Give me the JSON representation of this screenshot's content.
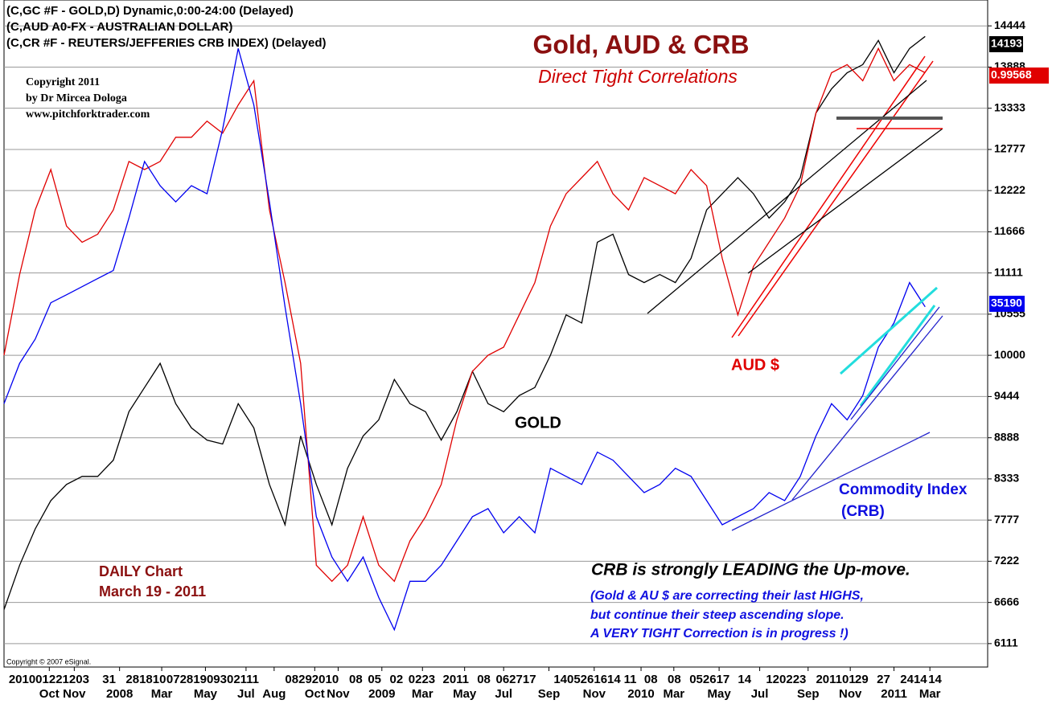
{
  "chart_data": {
    "type": "line",
    "title": "Gold, AUD & CRB",
    "subtitle": "Direct Tight Correlations",
    "header": [
      "(C,GC #F - GOLD,D) Dynamic,0:00-24:00 (Delayed)",
      "(C,AUD A0-FX - AUSTRALIAN DOLLAR)",
      "(C,CR #F - REUTERS/JEFFERIES CRB INDEX)  (Delayed)"
    ],
    "copyright": [
      "Copyright 2011",
      "by Dr Mircea Dologa",
      "www.pitchforktrader.com"
    ],
    "source": "Copyright © 2007 eSignal.",
    "annotations": [
      {
        "text": "DAILY Chart",
        "color": "#8b1010"
      },
      {
        "text": "March 19 - 2011",
        "color": "#8b1010"
      },
      {
        "text": "GOLD",
        "color": "#000000"
      },
      {
        "text": "AUD $",
        "color": "#e00000"
      },
      {
        "text": "Commodity Index",
        "color": "#1010e0"
      },
      {
        "text": "(CRB)",
        "color": "#1010e0"
      },
      {
        "text": "CRB is strongly  LEADING the Up-move.",
        "color": "#000000"
      },
      {
        "text": "(Gold & AU $ are correcting their last HIGHS,",
        "color": "#1010e0"
      },
      {
        "text": "but continue their steep ascending slope.",
        "color": "#1010e0"
      },
      {
        "text": "A VERY TIGHT Correction is in progress !)",
        "color": "#1010e0"
      }
    ],
    "x": [
      0,
      1,
      2,
      3,
      4,
      5,
      6,
      7,
      8,
      9,
      10,
      11,
      12,
      13,
      14,
      15,
      16,
      17,
      18,
      19,
      20,
      21,
      22,
      23,
      24,
      25,
      26,
      27,
      28,
      29,
      30,
      31,
      32,
      33,
      34,
      35,
      36,
      37,
      38,
      39,
      40,
      41,
      42,
      43,
      44,
      45,
      46,
      47,
      48,
      49,
      50,
      51,
      52,
      53,
      54,
      55,
      56,
      57,
      58,
      59
    ],
    "xlim": [
      0,
      63
    ],
    "xticks": [
      {
        "value": 2.9,
        "label": "Oct"
      },
      {
        "value": 4.5,
        "label": "Nov"
      },
      {
        "value": 7.4,
        "label": "2008"
      },
      {
        "value": 10.1,
        "label": "Mar"
      },
      {
        "value": 12.9,
        "label": "May"
      },
      {
        "value": 15.5,
        "label": "Jul"
      },
      {
        "value": 17.3,
        "label": "Aug"
      },
      {
        "value": 19.9,
        "label": "Oct"
      },
      {
        "value": 21.4,
        "label": "Nov"
      },
      {
        "value": 24.2,
        "label": "2009"
      },
      {
        "value": 26.8,
        "label": "Mar"
      },
      {
        "value": 29.5,
        "label": "May"
      },
      {
        "value": 32,
        "label": "Jul"
      },
      {
        "value": 34.9,
        "label": "Sep"
      },
      {
        "value": 37.8,
        "label": "Nov"
      },
      {
        "value": 40.8,
        "label": "2010"
      },
      {
        "value": 42.9,
        "label": "Mar"
      },
      {
        "value": 45.8,
        "label": "May"
      },
      {
        "value": 48.4,
        "label": "Jul"
      },
      {
        "value": 51.5,
        "label": "Sep"
      },
      {
        "value": 54.2,
        "label": "Nov"
      },
      {
        "value": 57,
        "label": "2011"
      },
      {
        "value": 59.3,
        "label": "Mar"
      }
    ],
    "xticks_day": [
      {
        "value": 0.3,
        "label": "201001221203"
      },
      {
        "value": 6.3,
        "label": "31"
      },
      {
        "value": 7.8,
        "label": "281810"
      },
      {
        "value": 10.4,
        "label": "07281909302111"
      },
      {
        "value": 18.0,
        "label": "08292010"
      },
      {
        "value": 22.1,
        "label": "08"
      },
      {
        "value": 23.3,
        "label": "05"
      },
      {
        "value": 24.7,
        "label": "02"
      },
      {
        "value": 25.9,
        "label": "0223"
      },
      {
        "value": 28.1,
        "label": "2011"
      },
      {
        "value": 30.3,
        "label": "08"
      },
      {
        "value": 31.5,
        "label": "062717"
      },
      {
        "value": 35.2,
        "label": "1405261614"
      },
      {
        "value": 39.7,
        "label": "11"
      },
      {
        "value": 41.0,
        "label": "08"
      },
      {
        "value": 42.5,
        "label": "08"
      },
      {
        "value": 43.9,
        "label": "052617"
      },
      {
        "value": 47.0,
        "label": "14"
      },
      {
        "value": 48.8,
        "label": "120223"
      },
      {
        "value": 52.0,
        "label": "201101"
      },
      {
        "value": 54.5,
        "label": "29"
      },
      {
        "value": 55.9,
        "label": "27"
      },
      {
        "value": 57.4,
        "label": "2414"
      },
      {
        "value": 59.2,
        "label": "14"
      }
    ],
    "ylim": [
      5795,
      14793
    ],
    "yticks": [
      6111,
      6666,
      7222,
      7777,
      8333,
      8888,
      9444,
      10000,
      10555,
      11111,
      11666,
      12222,
      12777,
      13333,
      13888,
      14444
    ],
    "grid": true,
    "series": [
      {
        "name": "GOLD",
        "color": "#000000",
        "last_label": "14193",
        "values": [
          6570,
          7169,
          7659,
          8040,
          8258,
          8367,
          8367,
          8585,
          9239,
          9565,
          9892,
          9348,
          9021,
          8857,
          8803,
          9348,
          9021,
          8258,
          7714,
          8912,
          8258,
          7714,
          8476,
          8912,
          9130,
          9674,
          9348,
          9239,
          8857,
          9239,
          9783,
          9348,
          9239,
          9457,
          9565,
          10001,
          10546,
          10436,
          11525,
          11634,
          11090,
          10981,
          11090,
          10981,
          11308,
          11961,
          12179,
          12397,
          12179,
          11852,
          12070,
          12397,
          13268,
          13595,
          13812,
          13921,
          14248,
          13812,
          14139,
          14302
        ]
      },
      {
        "name": "AUSTRALIAN DOLLAR",
        "color": "#e00000",
        "last_label": "0.99568",
        "values": [
          10001,
          11090,
          11961,
          12506,
          11743,
          11525,
          11634,
          11961,
          12615,
          12506,
          12615,
          12941,
          12941,
          13159,
          12996,
          13377,
          13703,
          11961,
          10981,
          9892,
          7169,
          6952,
          7169,
          7823,
          7169,
          6952,
          7496,
          7823,
          8258,
          9130,
          9783,
          10001,
          10110,
          10546,
          10981,
          11743,
          12179,
          12397,
          12615,
          12179,
          11961,
          12397,
          12288,
          12179,
          12506,
          12288,
          11308,
          10546,
          11199,
          11525,
          11852,
          12288,
          13268,
          13812,
          13921,
          13703,
          14139,
          13703,
          13921,
          13812
        ]
      },
      {
        "name": "CRB INDEX",
        "color": "#0000f0",
        "last_label": "35190",
        "values": [
          9348,
          9892,
          10218,
          10709,
          10817,
          10926,
          11035,
          11144,
          11852,
          12615,
          12288,
          12070,
          12288,
          12179,
          13050,
          14139,
          13377,
          12070,
          10654,
          9348,
          7823,
          7279,
          6952,
          7279,
          6734,
          6298,
          6952,
          6952,
          7169,
          7496,
          7823,
          7932,
          7605,
          7823,
          7605,
          8476,
          8367,
          8258,
          8694,
          8585,
          8367,
          8149,
          8258,
          8476,
          8367,
          8040,
          7714,
          7823,
          7932,
          8149,
          8040,
          8367,
          8912,
          9348,
          9130,
          9457,
          10110,
          10436,
          10981,
          10654
        ]
      }
    ]
  }
}
